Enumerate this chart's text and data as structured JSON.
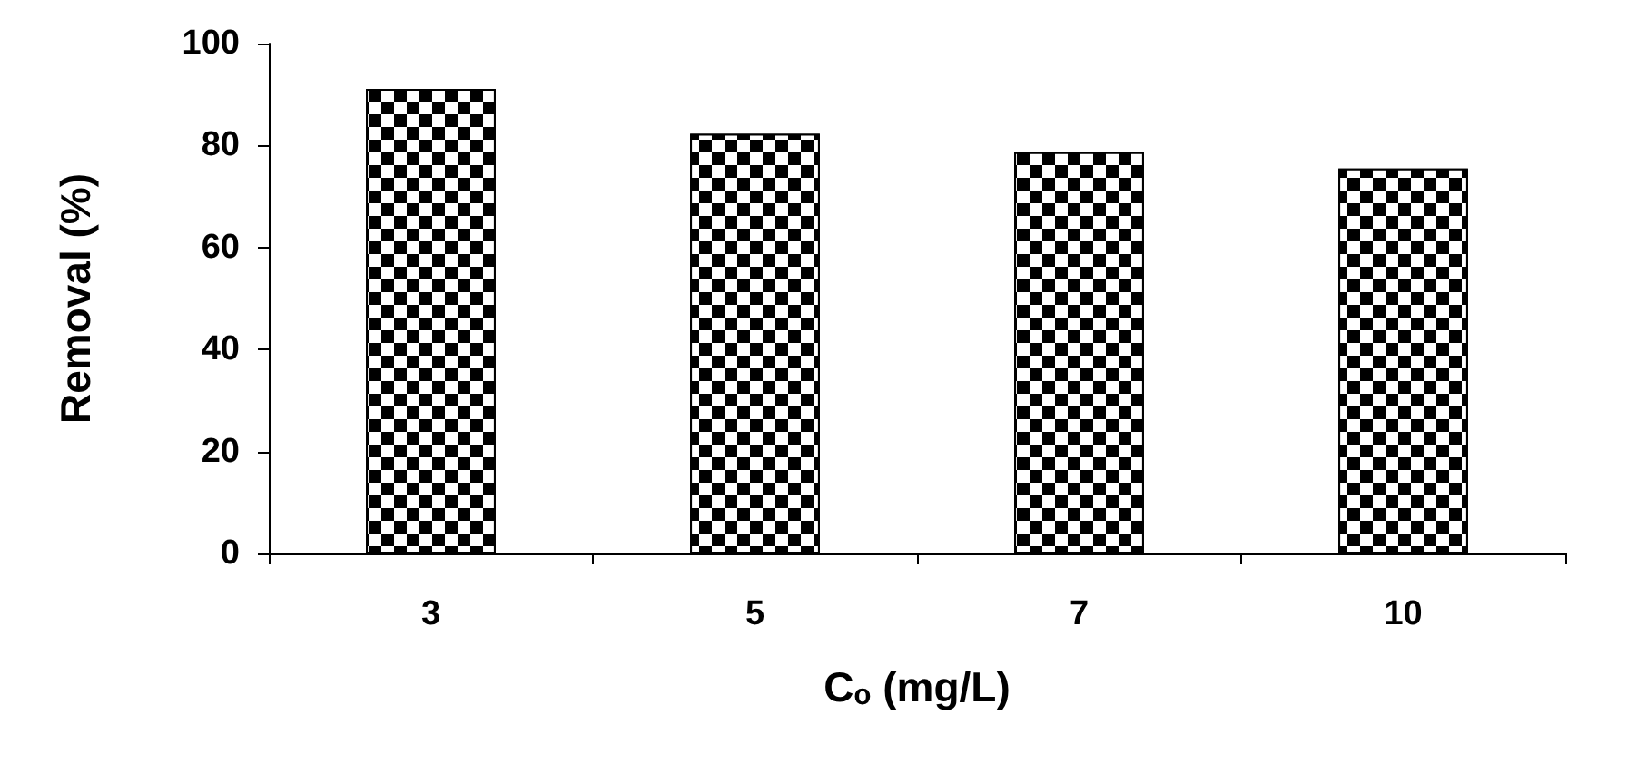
{
  "chart_data": {
    "type": "bar",
    "xlabel": "Cₒ (mg/L)",
    "ylabel": "Removal (%)",
    "categories": [
      "3",
      "5",
      "7",
      "10"
    ],
    "values": [
      91.1,
      82.3,
      78.7,
      75.5
    ],
    "color": "#000000",
    "ylim": [
      0,
      100
    ],
    "yticks": [
      0,
      20,
      40,
      60,
      80,
      100
    ],
    "grid": false
  }
}
